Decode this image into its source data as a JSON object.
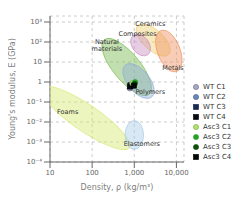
{
  "chart_data": {
    "type": "scatter",
    "log": true,
    "xlabel": "Density, ρ  (kg/m³)",
    "ylabel": "Young's modulus, E (GPa)",
    "xlim": [
      10,
      15135.61248
    ],
    "ylim": [
      0.0001,
      1995.262315
    ],
    "xticks": [
      10,
      100,
      {
        "value": 1000,
        "label": "1,000"
      },
      {
        "value": 10000,
        "label": "10,000"
      }
    ],
    "yticks": [
      {
        "value": 0.0001,
        "label": "10⁻⁴"
      },
      {
        "value": 0.001,
        "label": "10⁻³"
      },
      {
        "value": 0.01,
        "label": "10⁻²"
      },
      {
        "value": 0.1,
        "label": "10⁻¹"
      },
      1,
      10,
      {
        "value": 100,
        "label": "10²"
      },
      {
        "value": 1000,
        "label": "10³"
      }
    ],
    "grid": true,
    "legend": "right",
    "regions": [
      {
        "name": "Ceramics",
        "x_center": 2818.383,
        "y_center": 125.8925,
        "a_decades": 0.3,
        "b_decades": 0.85,
        "angle": 20,
        "color": "#f0d070",
        "label_x": 2398.833,
        "label_y": 831.7638
      },
      {
        "name": "Composites",
        "x_center": 1412.538,
        "y_center": 70.79458,
        "a_decades": 0.22,
        "b_decades": 0.55,
        "angle": 10,
        "color": "#c890c0",
        "label_x": 1202.264,
        "label_y": 239.8833
      },
      {
        "name": "Natural\nmaterials",
        "x_center": 660.6934,
        "y_center": 5.623413,
        "a_decades": 0.38,
        "b_decades": 1.5,
        "angle": 18,
        "color": "#78b850",
        "label_x": 223.8721,
        "label_y": 66.06934
      },
      {
        "name": "Metals",
        "x_center": 6606.934,
        "y_center": 35.48134,
        "a_decades": 0.28,
        "b_decades": 1.05,
        "angle": 8,
        "color": "#f09060",
        "label_x": 8317.638,
        "label_y": 5.248075
      },
      {
        "name": "Polymers",
        "x_center": 1258.925,
        "y_center": 1.122018,
        "a_decades": 0.3,
        "b_decades": 0.9,
        "angle": 15,
        "color": "#90acd8",
        "label_x": 2398.833,
        "label_y": 0.3019952
      },
      {
        "name": "Foams",
        "x_center": 70.79458,
        "y_center": 0.01584893,
        "a_decades": 0.45,
        "b_decades": 1.85,
        "angle": 32,
        "color": "#d8e870",
        "label_x": 26.30268,
        "label_y": 0.03311311
      },
      {
        "name": "Elastomers",
        "x_center": 1000,
        "y_center": 0.002238721,
        "a_decades": 0.22,
        "b_decades": 0.72,
        "angle": 0,
        "color": "#a8cce8",
        "label_x": 1513.561,
        "label_y": 0.0007943282
      }
    ],
    "series": [
      {
        "name": "WT C1",
        "color": "#a8a8c0",
        "edge_color": "#666688",
        "marker": "circle",
        "x": [
          785.2356
        ],
        "y": [
          0.4786301
        ]
      },
      {
        "name": "WT C2",
        "color": "#6888b8",
        "edge_color": "#445580",
        "marker": "circle",
        "x": [
          841.3951
        ],
        "y": [
          0.5623413
        ]
      },
      {
        "name": "WT C3",
        "color": "#1a2850",
        "edge_color": "#1a2850",
        "marker": "square",
        "x": [
          822.2426
        ],
        "y": [
          0.691831
        ]
      },
      {
        "name": "WT C4",
        "color": "#080810",
        "edge_color": "#080810",
        "marker": "square",
        "x": [
          785.2356
        ],
        "y": [
          0.6025596
        ]
      },
      {
        "name": "Asc3 C1",
        "color": "#b0e070",
        "edge_color": "#80a840",
        "marker": "circle",
        "x": [
          901.5711
        ],
        "y": [
          0.8709636
        ]
      },
      {
        "name": "Asc3 C2",
        "color": "#28a028",
        "edge_color": "#28a028",
        "marker": "circle",
        "x": [
          1047.129
        ],
        "y": [
          1
        ]
      },
      {
        "name": "Asc3 C3",
        "color": "#0a500a",
        "edge_color": "#0a500a",
        "marker": "circle",
        "x": [
          1023.293
        ],
        "y": [
          0.8128305
        ]
      },
      {
        "name": "Asc3 C4",
        "color": "#020802",
        "edge_color": "#020802",
        "marker": "square",
        "x": [
          977.2372
        ],
        "y": [
          0.6606934
        ]
      }
    ]
  }
}
